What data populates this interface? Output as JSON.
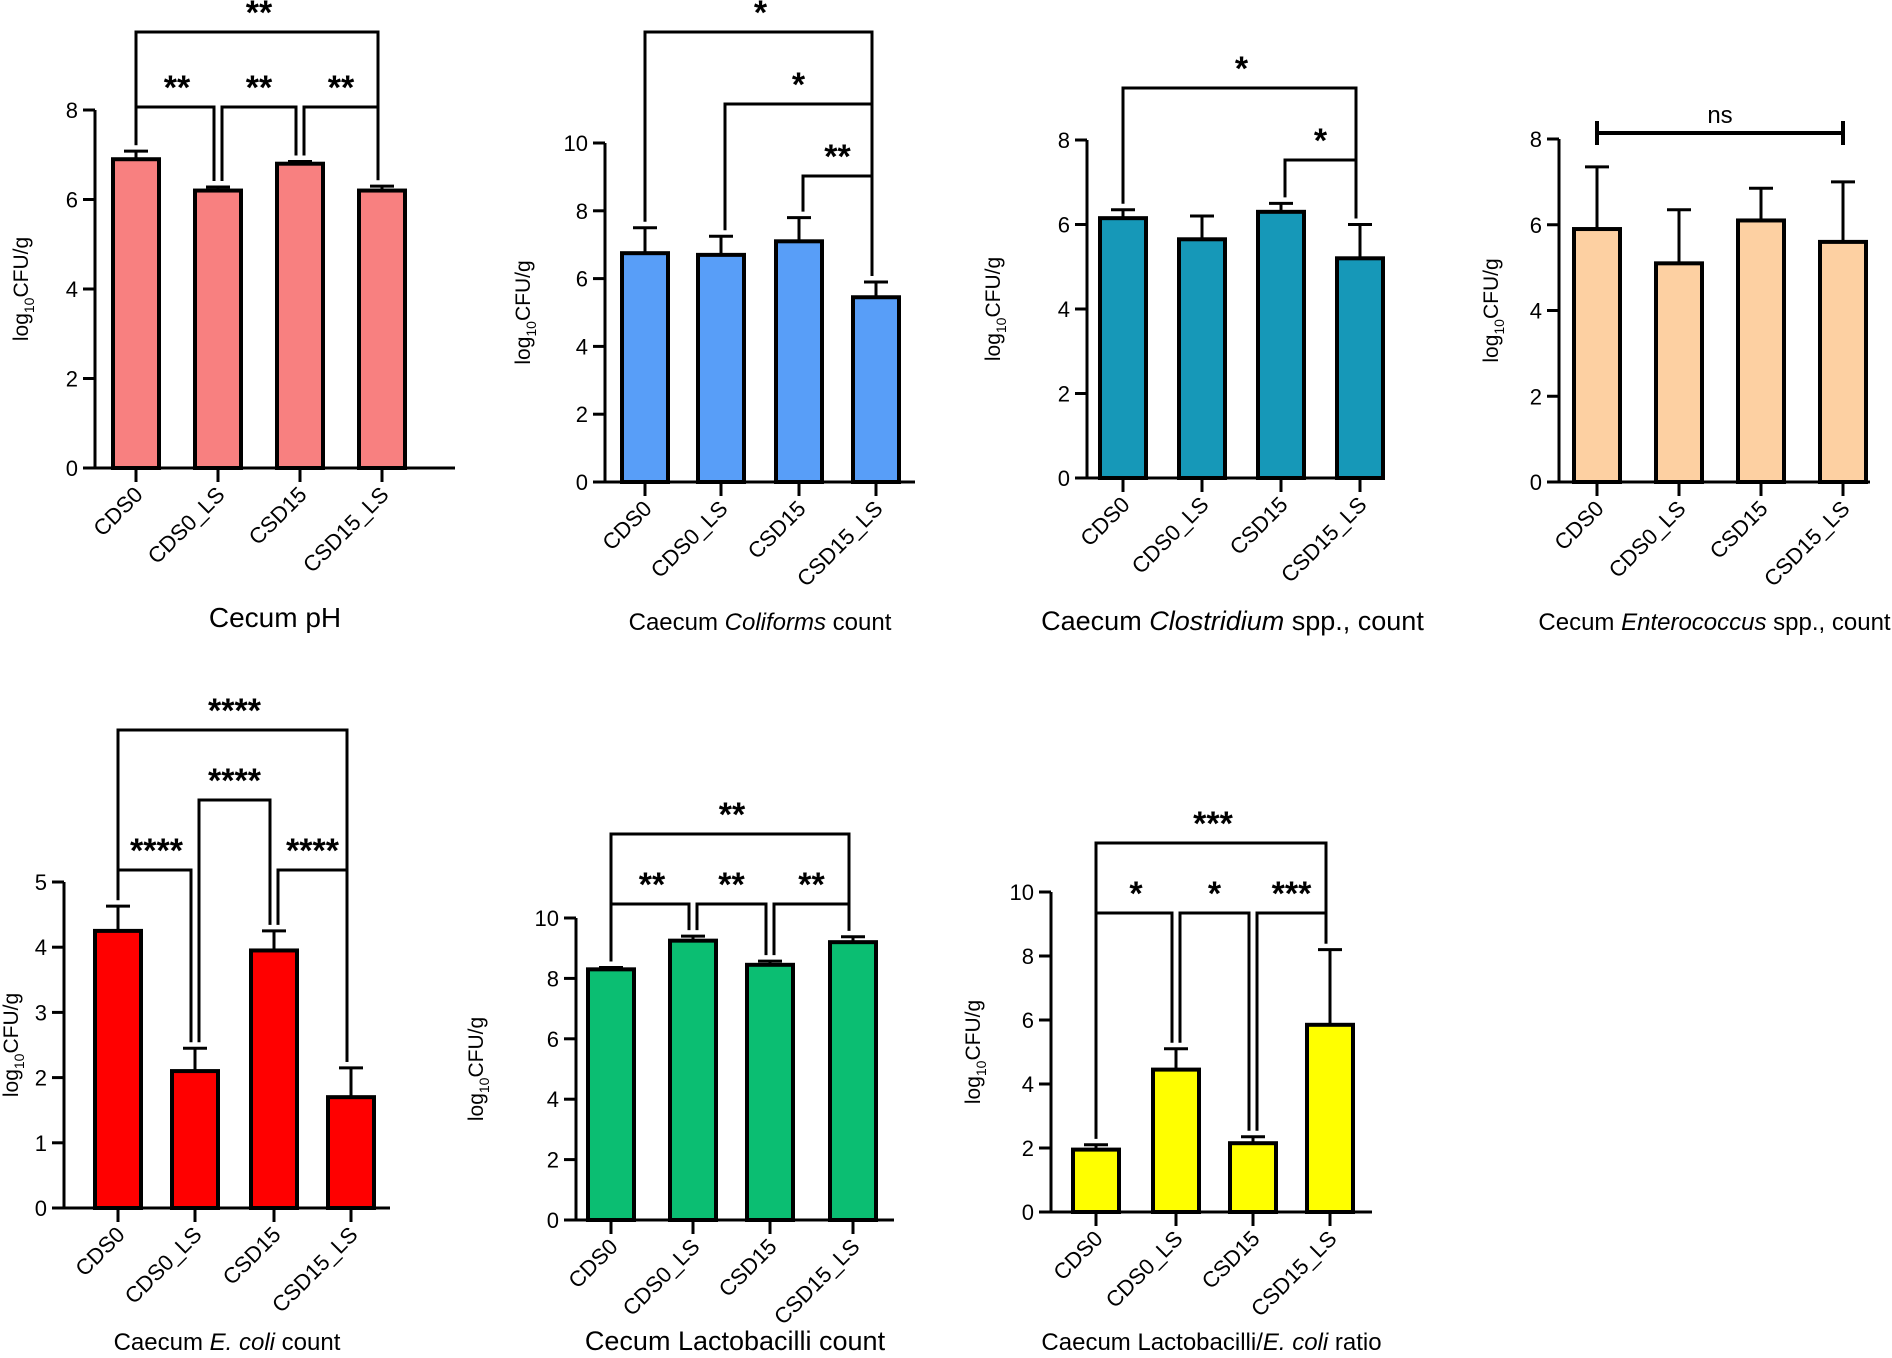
{
  "y_axis_label": {
    "base": "log",
    "sub": "10",
    "rest": "CFU/g"
  },
  "chart_data": [
    {
      "type": "bar",
      "title": "Cecum pH",
      "categories": [
        "CDS0",
        "CDS0_LS",
        "CSD15",
        "CSD15_LS"
      ],
      "values": [
        6.9,
        6.2,
        6.8,
        6.2
      ],
      "errors": [
        0.18,
        0.08,
        0.05,
        0.1
      ],
      "ylim": [
        0,
        8
      ],
      "yticks": [
        "0",
        "2",
        "4",
        "6",
        "8"
      ],
      "color": "#F88080",
      "brackets": [
        {
          "from": 0,
          "to": 3,
          "label": "**"
        },
        {
          "from": 0,
          "to": 1,
          "label": "**"
        },
        {
          "from": 1,
          "to": 2,
          "label": "**"
        },
        {
          "from": 2,
          "to": 3,
          "label": "**"
        }
      ]
    },
    {
      "type": "bar",
      "title": [
        {
          "text": "Caecum "
        },
        {
          "text": "Coliforms",
          "italic": true
        },
        {
          "text": " count"
        }
      ],
      "categories": [
        "CDS0",
        "CDS0_LS",
        "CSD15",
        "CSD15_LS"
      ],
      "values": [
        6.75,
        6.7,
        7.1,
        5.45
      ],
      "errors": [
        0.75,
        0.55,
        0.7,
        0.45
      ],
      "ylim": [
        0,
        10
      ],
      "yticks": [
        "0",
        "2",
        "4",
        "6",
        "8",
        "10"
      ],
      "color": "#589EF8",
      "brackets": [
        {
          "from": 0,
          "to": 3,
          "label": "*"
        },
        {
          "from": 1,
          "to": 3,
          "label": "*"
        },
        {
          "from": 2,
          "to": 3,
          "label": "**"
        }
      ]
    },
    {
      "type": "bar",
      "title": [
        {
          "text": "Caecum "
        },
        {
          "text": "Clostridium",
          "italic": true
        },
        {
          "text": " spp., count"
        }
      ],
      "categories": [
        "CDS0",
        "CDS0_LS",
        "CSD15",
        "CSD15_LS"
      ],
      "values": [
        6.15,
        5.65,
        6.3,
        5.2
      ],
      "errors": [
        0.2,
        0.55,
        0.2,
        0.8
      ],
      "ylim": [
        0,
        8
      ],
      "yticks": [
        "0",
        "2",
        "4",
        "6",
        "8"
      ],
      "color": "#1698B8",
      "brackets": [
        {
          "from": 0,
          "to": 3,
          "label": "*"
        },
        {
          "from": 2,
          "to": 3,
          "label": "*"
        }
      ]
    },
    {
      "type": "bar",
      "title": [
        {
          "text": "Cecum "
        },
        {
          "text": "Enterococcus",
          "italic": true
        },
        {
          "text": " spp., count"
        }
      ],
      "categories": [
        "CDS0",
        "CDS0_LS",
        "CSD15",
        "CSD15_LS"
      ],
      "values": [
        5.9,
        5.1,
        6.1,
        5.6
      ],
      "errors": [
        1.45,
        1.25,
        0.75,
        1.4
      ],
      "ylim": [
        0,
        8
      ],
      "yticks": [
        "0",
        "2",
        "4",
        "6",
        "8"
      ],
      "color": "#FDD0A2",
      "brackets": [
        {
          "from": 0,
          "to": 3,
          "label": "ns",
          "flat": true
        }
      ]
    },
    {
      "type": "bar",
      "title": [
        {
          "text": "Caecum "
        },
        {
          "text": "E. coli",
          "italic": true
        },
        {
          "text": " count"
        }
      ],
      "categories": [
        "CDS0",
        "CDS0_LS",
        "CSD15",
        "CSD15_LS"
      ],
      "values": [
        4.25,
        2.1,
        3.95,
        1.7
      ],
      "errors": [
        0.38,
        0.35,
        0.3,
        0.45
      ],
      "ylim": [
        0,
        5
      ],
      "yticks": [
        "0",
        "1",
        "2",
        "3",
        "4",
        "5"
      ],
      "color": "#FF0000",
      "brackets": [
        {
          "from": 0,
          "to": 3,
          "label": "****"
        },
        {
          "from": 1,
          "to": 2,
          "label": "****"
        },
        {
          "from": 0,
          "to": 1,
          "label": "****"
        },
        {
          "from": 2,
          "to": 3,
          "label": "****"
        }
      ]
    },
    {
      "type": "bar",
      "title": "Cecum Lactobacilli count",
      "categories": [
        "CDS0",
        "CDS0_LS",
        "CSD15",
        "CSD15_LS"
      ],
      "values": [
        8.3,
        9.25,
        8.45,
        9.2
      ],
      "errors": [
        0.06,
        0.15,
        0.12,
        0.18
      ],
      "ylim": [
        0,
        10
      ],
      "yticks": [
        "0",
        "2",
        "4",
        "6",
        "8",
        "10"
      ],
      "color": "#0BBE72",
      "brackets": [
        {
          "from": 0,
          "to": 3,
          "label": "**"
        },
        {
          "from": 0,
          "to": 1,
          "label": "**"
        },
        {
          "from": 1,
          "to": 2,
          "label": "**"
        },
        {
          "from": 2,
          "to": 3,
          "label": "**"
        }
      ]
    },
    {
      "type": "bar",
      "title": [
        {
          "text": "Caecum Lactobacilli/"
        },
        {
          "text": "E. coli",
          "italic": true
        },
        {
          "text": " ratio"
        }
      ],
      "categories": [
        "CDS0",
        "CDS0_LS",
        "CSD15",
        "CSD15_LS"
      ],
      "values": [
        1.95,
        4.45,
        2.15,
        5.85
      ],
      "errors": [
        0.15,
        0.65,
        0.2,
        2.35
      ],
      "ylim": [
        0,
        10
      ],
      "yticks": [
        "0",
        "2",
        "4",
        "6",
        "8",
        "10"
      ],
      "color": "#FFFF00",
      "brackets": [
        {
          "from": 0,
          "to": 3,
          "label": "***"
        },
        {
          "from": 0,
          "to": 1,
          "label": "*"
        },
        {
          "from": 1,
          "to": 2,
          "label": "*"
        },
        {
          "from": 2,
          "to": 3,
          "label": "***"
        }
      ]
    }
  ]
}
